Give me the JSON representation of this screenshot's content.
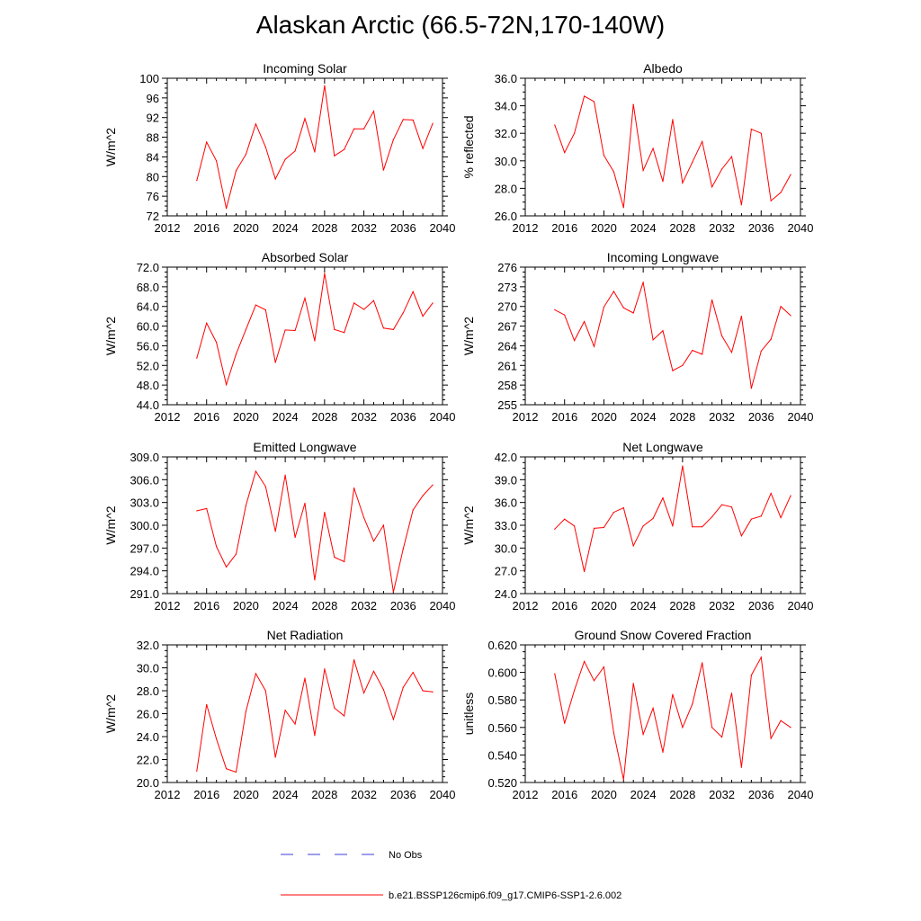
{
  "title": "Alaskan Arctic (66.5-72N,170-140W)",
  "colors": {
    "model": "#ff0000",
    "obs": "#3b3bdb",
    "axis": "#000000"
  },
  "legend": [
    {
      "label": "No Obs",
      "style": "dashed",
      "color": "#3b3bdb"
    },
    {
      "label": "b.e21.BSSP126cmip6.f09_g17.CMIP6-SSP1-2.6.002",
      "style": "solid",
      "color": "#ff0000"
    }
  ],
  "chart_data": [
    {
      "type": "line",
      "title": "Incoming Solar",
      "xlabel": "",
      "ylabel": "W/m^2",
      "xlim": [
        2012,
        2040
      ],
      "xticks": [
        "2012",
        "2016",
        "2020",
        "2024",
        "2028",
        "2032",
        "2036",
        "2040"
      ],
      "ylim": [
        72,
        100
      ],
      "yticks": [
        "72",
        "76",
        "80",
        "84",
        "88",
        "92",
        "96",
        "100"
      ],
      "series": [
        {
          "x": [
            2015,
            2016,
            2017,
            2018,
            2019,
            2020,
            2021,
            2022,
            2023,
            2024,
            2025,
            2026,
            2027,
            2028,
            2029,
            2030,
            2031,
            2032,
            2033,
            2034,
            2035,
            2036,
            2037,
            2038,
            2039
          ],
          "values": [
            79.2,
            87.0,
            83.2,
            73.5,
            81.2,
            84.5,
            90.7,
            86.0,
            79.5,
            83.5,
            85.2,
            91.8,
            85.0,
            98.5,
            84.2,
            85.5,
            89.7,
            89.7,
            93.3,
            81.3,
            87.5,
            91.6,
            91.5,
            85.7,
            90.8
          ]
        }
      ]
    },
    {
      "type": "line",
      "title": "Albedo",
      "xlabel": "",
      "ylabel": "% reflected",
      "xlim": [
        2012,
        2040
      ],
      "xticks": [
        "2012",
        "2016",
        "2020",
        "2024",
        "2028",
        "2032",
        "2036",
        "2040"
      ],
      "ylim": [
        26,
        36
      ],
      "yticks": [
        "26.0",
        "28.0",
        "30.0",
        "32.0",
        "34.0",
        "36.0"
      ],
      "series": [
        {
          "x": [
            2015,
            2016,
            2017,
            2018,
            2019,
            2020,
            2021,
            2022,
            2023,
            2024,
            2025,
            2026,
            2027,
            2028,
            2029,
            2030,
            2031,
            2032,
            2033,
            2034,
            2035,
            2036,
            2037,
            2038,
            2039
          ],
          "values": [
            32.6,
            30.6,
            32.0,
            34.7,
            34.3,
            30.4,
            29.2,
            26.6,
            34.1,
            29.3,
            30.9,
            28.5,
            33.0,
            28.4,
            29.9,
            31.4,
            28.1,
            29.4,
            30.3,
            26.8,
            32.3,
            32.0,
            27.1,
            27.7,
            29.0
          ]
        }
      ]
    },
    {
      "type": "line",
      "title": "Absorbed Solar",
      "xlabel": "",
      "ylabel": "W/m^2",
      "xlim": [
        2012,
        2040
      ],
      "xticks": [
        "2012",
        "2016",
        "2020",
        "2024",
        "2028",
        "2032",
        "2036",
        "2040"
      ],
      "ylim": [
        44,
        72
      ],
      "yticks": [
        "44.0",
        "48.0",
        "52.0",
        "56.0",
        "60.0",
        "64.0",
        "68.0",
        "72.0"
      ],
      "series": [
        {
          "x": [
            2015,
            2016,
            2017,
            2018,
            2019,
            2020,
            2021,
            2022,
            2023,
            2024,
            2025,
            2026,
            2027,
            2028,
            2029,
            2030,
            2031,
            2032,
            2033,
            2034,
            2035,
            2036,
            2037,
            2038,
            2039
          ],
          "values": [
            53.5,
            60.6,
            56.7,
            48.1,
            54.3,
            59.3,
            64.3,
            63.3,
            52.6,
            59.2,
            59.1,
            65.7,
            57.0,
            70.7,
            59.3,
            58.7,
            64.7,
            63.4,
            65.2,
            59.6,
            59.3,
            62.7,
            67.0,
            62.0,
            64.7
          ]
        }
      ]
    },
    {
      "type": "line",
      "title": "Incoming Longwave",
      "xlabel": "",
      "ylabel": "W/m^2",
      "xlim": [
        2012,
        2040
      ],
      "xticks": [
        "2012",
        "2016",
        "2020",
        "2024",
        "2028",
        "2032",
        "2036",
        "2040"
      ],
      "ylim": [
        255,
        276
      ],
      "yticks": [
        "255",
        "258",
        "261",
        "264",
        "267",
        "270",
        "273",
        "276"
      ],
      "series": [
        {
          "x": [
            2015,
            2016,
            2017,
            2018,
            2019,
            2020,
            2021,
            2022,
            2023,
            2024,
            2025,
            2026,
            2027,
            2028,
            2029,
            2030,
            2031,
            2032,
            2033,
            2034,
            2035,
            2036,
            2037,
            2038,
            2039
          ],
          "values": [
            269.5,
            268.7,
            264.8,
            267.7,
            263.9,
            269.9,
            272.3,
            269.8,
            269.0,
            273.7,
            264.9,
            266.3,
            260.2,
            261.0,
            263.3,
            262.7,
            271.0,
            265.5,
            263.0,
            268.5,
            257.5,
            263.2,
            265.0,
            270.0,
            268.6
          ]
        }
      ]
    },
    {
      "type": "line",
      "title": "Emitted Longwave",
      "xlabel": "",
      "ylabel": "W/m^2",
      "xlim": [
        2012,
        2040
      ],
      "xticks": [
        "2012",
        "2016",
        "2020",
        "2024",
        "2028",
        "2032",
        "2036",
        "2040"
      ],
      "ylim": [
        291,
        309
      ],
      "yticks": [
        "291.0",
        "294.0",
        "297.0",
        "300.0",
        "303.0",
        "306.0",
        "309.0"
      ],
      "series": [
        {
          "x": [
            2015,
            2016,
            2017,
            2018,
            2019,
            2020,
            2021,
            2022,
            2023,
            2024,
            2025,
            2026,
            2027,
            2028,
            2029,
            2030,
            2031,
            2032,
            2033,
            2034,
            2035,
            2036,
            2037,
            2038,
            2039
          ],
          "values": [
            301.9,
            302.2,
            297.2,
            294.5,
            296.2,
            302.6,
            307.1,
            305.1,
            299.2,
            306.6,
            298.4,
            302.9,
            292.8,
            301.7,
            295.8,
            295.2,
            304.9,
            301.0,
            297.9,
            300.0,
            291.2,
            296.9,
            302.0,
            303.9,
            305.3
          ]
        }
      ]
    },
    {
      "type": "line",
      "title": "Net Longwave",
      "xlabel": "",
      "ylabel": "W/m^2",
      "xlim": [
        2012,
        2040
      ],
      "xticks": [
        "2012",
        "2016",
        "2020",
        "2024",
        "2028",
        "2032",
        "2036",
        "2040"
      ],
      "ylim": [
        24,
        42
      ],
      "yticks": [
        "24.0",
        "27.0",
        "30.0",
        "33.0",
        "36.0",
        "39.0",
        "42.0"
      ],
      "series": [
        {
          "x": [
            2015,
            2016,
            2017,
            2018,
            2019,
            2020,
            2021,
            2022,
            2023,
            2024,
            2025,
            2026,
            2027,
            2028,
            2029,
            2030,
            2031,
            2032,
            2033,
            2034,
            2035,
            2036,
            2037,
            2038,
            2039
          ],
          "values": [
            32.5,
            33.8,
            32.9,
            26.9,
            32.6,
            32.7,
            34.7,
            35.3,
            30.3,
            32.9,
            33.9,
            36.6,
            32.9,
            40.8,
            32.8,
            32.8,
            34.1,
            35.7,
            35.4,
            31.6,
            33.8,
            34.2,
            37.2,
            34.0,
            36.9
          ]
        }
      ]
    },
    {
      "type": "line",
      "title": "Net Radiation",
      "xlabel": "",
      "ylabel": "W/m^2",
      "xlim": [
        2012,
        2040
      ],
      "xticks": [
        "2012",
        "2016",
        "2020",
        "2024",
        "2028",
        "2032",
        "2036",
        "2040"
      ],
      "ylim": [
        20,
        32
      ],
      "yticks": [
        "20.0",
        "22.0",
        "24.0",
        "26.0",
        "28.0",
        "30.0",
        "32.0"
      ],
      "series": [
        {
          "x": [
            2015,
            2016,
            2017,
            2018,
            2019,
            2020,
            2021,
            2022,
            2023,
            2024,
            2025,
            2026,
            2027,
            2028,
            2029,
            2030,
            2031,
            2032,
            2033,
            2034,
            2035,
            2036,
            2037,
            2038,
            2039
          ],
          "values": [
            21.0,
            26.8,
            23.8,
            21.2,
            20.9,
            26.2,
            29.5,
            28.0,
            22.2,
            26.3,
            25.1,
            29.1,
            24.1,
            29.9,
            26.5,
            25.8,
            30.7,
            27.8,
            29.7,
            28.1,
            25.5,
            28.3,
            29.6,
            28.0,
            27.9
          ]
        }
      ]
    },
    {
      "type": "line",
      "title": "Ground Snow Covered Fraction",
      "xlabel": "",
      "ylabel": "unitless",
      "xlim": [
        2012,
        2040
      ],
      "xticks": [
        "2012",
        "2016",
        "2020",
        "2024",
        "2028",
        "2032",
        "2036",
        "2040"
      ],
      "ylim": [
        0.52,
        0.62
      ],
      "yticks": [
        "0.520",
        "0.540",
        "0.560",
        "0.580",
        "0.600",
        "0.620"
      ],
      "series": [
        {
          "x": [
            2015,
            2016,
            2017,
            2018,
            2019,
            2020,
            2021,
            2022,
            2023,
            2024,
            2025,
            2026,
            2027,
            2028,
            2029,
            2030,
            2031,
            2032,
            2033,
            2034,
            2035,
            2036,
            2037,
            2038,
            2039
          ],
          "values": [
            0.599,
            0.563,
            0.587,
            0.608,
            0.594,
            0.604,
            0.556,
            0.522,
            0.592,
            0.555,
            0.574,
            0.542,
            0.584,
            0.56,
            0.577,
            0.607,
            0.56,
            0.553,
            0.585,
            0.531,
            0.598,
            0.611,
            0.552,
            0.565,
            0.56
          ]
        }
      ]
    }
  ]
}
